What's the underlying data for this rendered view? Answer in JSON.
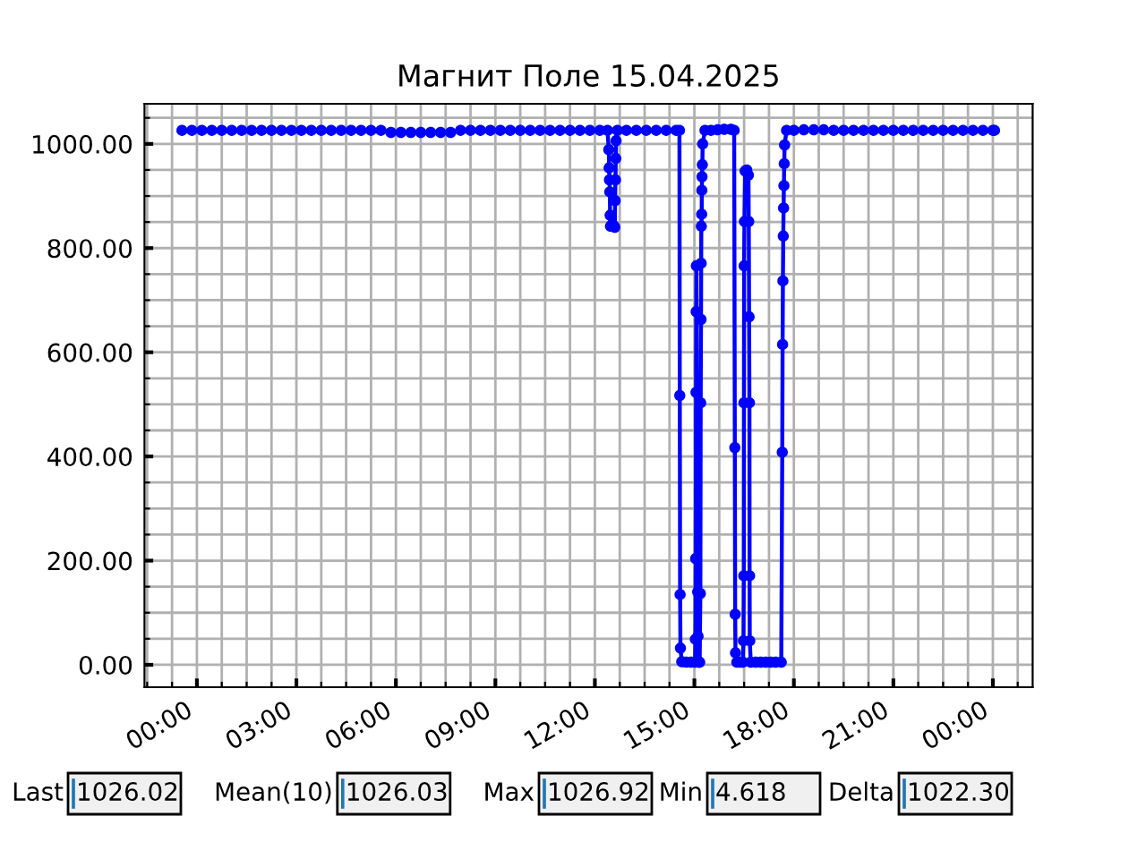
{
  "chart_data": {
    "type": "line",
    "title": "Магнит Поле 15.04.2025",
    "x": [
      -0.45,
      -0.15,
      0.15,
      0.45,
      0.75,
      1.05,
      1.35,
      1.65,
      1.95,
      2.25,
      2.55,
      2.85,
      3.15,
      3.45,
      3.75,
      4.05,
      4.35,
      4.65,
      4.95,
      5.25,
      5.55,
      5.85,
      6.15,
      6.45,
      6.75,
      7.05,
      7.35,
      7.65,
      7.95,
      8.25,
      8.55,
      8.85,
      9.15,
      9.45,
      9.75,
      10.05,
      10.35,
      10.65,
      10.95,
      11.25,
      11.55,
      11.85,
      12.15,
      12.38,
      12.42,
      12.43,
      12.44,
      12.45,
      12.46,
      12.47,
      12.52,
      12.57,
      12.6,
      12.61,
      12.62,
      12.63,
      12.64,
      12.68,
      12.95,
      13.25,
      13.55,
      13.85,
      14.15,
      14.45,
      14.55,
      14.56,
      14.57,
      14.58,
      14.62,
      14.75,
      14.9,
      15.02,
      15.03,
      15.04,
      15.05,
      15.055,
      15.06,
      15.1,
      15.11,
      15.13,
      15.16,
      15.18,
      15.19,
      15.2,
      15.205,
      15.21,
      15.22,
      15.225,
      15.23,
      15.24,
      15.25,
      15.32,
      15.5,
      15.7,
      15.9,
      16.1,
      16.2,
      16.22,
      16.23,
      16.24,
      16.28,
      16.38,
      16.46,
      16.48,
      16.49,
      16.495,
      16.5,
      16.51,
      16.53,
      16.58,
      16.63,
      16.64,
      16.65,
      16.66,
      16.665,
      16.67,
      16.7,
      16.85,
      17.0,
      17.15,
      17.3,
      17.45,
      17.62,
      17.65,
      17.66,
      17.67,
      17.68,
      17.69,
      17.7,
      17.71,
      17.72,
      17.78,
      18.0,
      18.3,
      18.6,
      18.9,
      19.2,
      19.5,
      19.8,
      20.1,
      20.4,
      20.7,
      21.0,
      21.3,
      21.6,
      21.9,
      22.2,
      22.5,
      22.8,
      23.1,
      23.4,
      23.7,
      24.0,
      24.05
    ],
    "series": [
      {
        "color": "#0000ff",
        "values": [
          1026,
          1026,
          1026,
          1026,
          1026,
          1026,
          1026,
          1026,
          1026,
          1026,
          1026,
          1026,
          1026,
          1026,
          1026,
          1026,
          1026,
          1026,
          1026,
          1026,
          1026,
          1022,
          1022,
          1022,
          1022,
          1022,
          1022,
          1022,
          1026,
          1026,
          1026,
          1026,
          1026,
          1026,
          1026,
          1026,
          1026,
          1026,
          1026,
          1026,
          1026,
          1026,
          1026,
          1026,
          989,
          954,
          931,
          908,
          863,
          842,
          845,
          843,
          840,
          891,
          931,
          972,
          1006,
          1026,
          1026,
          1026,
          1026,
          1026,
          1026,
          1026,
          1026,
          517,
          135,
          32,
          6,
          5,
          5,
          5,
          49,
          204,
          523,
          678,
          766,
          140,
          55,
          5,
          5,
          137,
          503,
          663,
          771,
          842,
          865,
          911,
          937,
          960,
          1000,
          1026,
          1026,
          1027,
          1028,
          1028,
          1026,
          417,
          97,
          23,
          5,
          5,
          5,
          46,
          171,
          503,
          766,
          851,
          948,
          950,
          940,
          851,
          668,
          503,
          171,
          46,
          5,
          5,
          5,
          5,
          5,
          5,
          5,
          408,
          615,
          737,
          823,
          877,
          920,
          962,
          998,
          1026,
          1026,
          1027,
          1027,
          1027,
          1026,
          1026,
          1026,
          1026,
          1026,
          1026,
          1026,
          1026,
          1026,
          1026,
          1026,
          1026,
          1026,
          1026,
          1026,
          1026,
          1026,
          1026
        ]
      }
    ],
    "xlim": [
      -1.58,
      25.2
    ],
    "xticks": [
      {
        "value": -1.5,
        "label": null
      },
      {
        "value": -0.75,
        "label": null
      },
      {
        "value": 0,
        "label": "00:00"
      },
      {
        "value": 0.75,
        "label": null
      },
      {
        "value": 1.5,
        "label": null
      },
      {
        "value": 2.25,
        "label": null
      },
      {
        "value": 3,
        "label": "03:00"
      },
      {
        "value": 3.75,
        "label": null
      },
      {
        "value": 4.5,
        "label": null
      },
      {
        "value": 5.25,
        "label": null
      },
      {
        "value": 6,
        "label": "06:00"
      },
      {
        "value": 6.75,
        "label": null
      },
      {
        "value": 7.5,
        "label": null
      },
      {
        "value": 8.25,
        "label": null
      },
      {
        "value": 9,
        "label": "09:00"
      },
      {
        "value": 9.75,
        "label": null
      },
      {
        "value": 10.5,
        "label": null
      },
      {
        "value": 11.25,
        "label": null
      },
      {
        "value": 12,
        "label": "12:00"
      },
      {
        "value": 12.75,
        "label": null
      },
      {
        "value": 13.5,
        "label": null
      },
      {
        "value": 14.25,
        "label": null
      },
      {
        "value": 15,
        "label": "15:00"
      },
      {
        "value": 15.75,
        "label": null
      },
      {
        "value": 16.5,
        "label": null
      },
      {
        "value": 17.25,
        "label": null
      },
      {
        "value": 18,
        "label": "18:00"
      },
      {
        "value": 18.75,
        "label": null
      },
      {
        "value": 19.5,
        "label": null
      },
      {
        "value": 20.25,
        "label": null
      },
      {
        "value": 21,
        "label": "21:00"
      },
      {
        "value": 21.75,
        "label": null
      },
      {
        "value": 22.5,
        "label": null
      },
      {
        "value": 23.25,
        "label": null
      },
      {
        "value": 24,
        "label": "00:00"
      },
      {
        "value": 24.75,
        "label": null
      }
    ],
    "ylim": [
      -43,
      1077
    ],
    "yticks": [
      {
        "value": 0,
        "label": "0.00"
      },
      {
        "value": 50,
        "label": null
      },
      {
        "value": 100,
        "label": null
      },
      {
        "value": 150,
        "label": null
      },
      {
        "value": 200,
        "label": "200.00"
      },
      {
        "value": 250,
        "label": null
      },
      {
        "value": 300,
        "label": null
      },
      {
        "value": 350,
        "label": null
      },
      {
        "value": 400,
        "label": "400.00"
      },
      {
        "value": 450,
        "label": null
      },
      {
        "value": 500,
        "label": null
      },
      {
        "value": 550,
        "label": null
      },
      {
        "value": 600,
        "label": "600.00"
      },
      {
        "value": 650,
        "label": null
      },
      {
        "value": 700,
        "label": null
      },
      {
        "value": 750,
        "label": null
      },
      {
        "value": 800,
        "label": "800.00"
      },
      {
        "value": 850,
        "label": null
      },
      {
        "value": 900,
        "label": null
      },
      {
        "value": 950,
        "label": null
      },
      {
        "value": 1000,
        "label": "1000.00"
      },
      {
        "value": 1050,
        "label": null
      }
    ],
    "grid": true,
    "marker": "circle",
    "line_style": "solid",
    "annotations": [
      "Last",
      "1026.02",
      "Mean(10)",
      "1026.03",
      "Max",
      "1026.92",
      "Min",
      "4.618",
      "Delta",
      "1022.30"
    ]
  }
}
